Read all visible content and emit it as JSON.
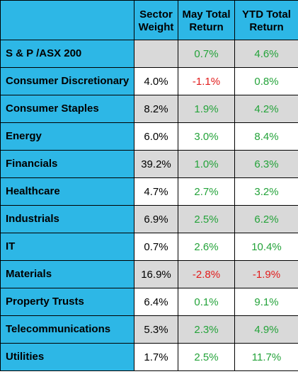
{
  "table": {
    "headers": {
      "label": "",
      "weight": "Sector Weight",
      "may_return": "May Total Return",
      "ytd_return": "YTD Total Return"
    },
    "rows": [
      {
        "name": "S & P /ASX 200",
        "weight": "",
        "may": "0.7%",
        "ytd": "4.6%"
      },
      {
        "name": "Consumer Discretionary",
        "weight": "4.0%",
        "may": "-1.1%",
        "ytd": "0.8%"
      },
      {
        "name": "Consumer Staples",
        "weight": "8.2%",
        "may": "1.9%",
        "ytd": "4.2%"
      },
      {
        "name": "Energy",
        "weight": "6.0%",
        "may": "3.0%",
        "ytd": "8.4%"
      },
      {
        "name": "Financials",
        "weight": "39.2%",
        "may": "1.0%",
        "ytd": "6.3%"
      },
      {
        "name": "Healthcare",
        "weight": "4.7%",
        "may": "2.7%",
        "ytd": "3.2%"
      },
      {
        "name": "Industrials",
        "weight": "6.9%",
        "may": "2.5%",
        "ytd": "6.2%"
      },
      {
        "name": "IT",
        "weight": "0.7%",
        "may": "2.6%",
        "ytd": "10.4%"
      },
      {
        "name": "Materials",
        "weight": "16.9%",
        "may": "-2.8%",
        "ytd": "-1.9%"
      },
      {
        "name": "Property Trusts",
        "weight": "6.4%",
        "may": "0.1%",
        "ytd": "9.1%"
      },
      {
        "name": "Telecommunications",
        "weight": "5.3%",
        "may": "2.3%",
        "ytd": "4.9%"
      },
      {
        "name": "Utilities",
        "weight": "1.7%",
        "may": "2.5%",
        "ytd": "11.7%"
      }
    ]
  },
  "colors": {
    "header_and_label_background": "#2db7e6",
    "shaded_row_background": "#d9d9d9",
    "positive_return": "#24a33a",
    "negative_return": "#e21b1b"
  }
}
